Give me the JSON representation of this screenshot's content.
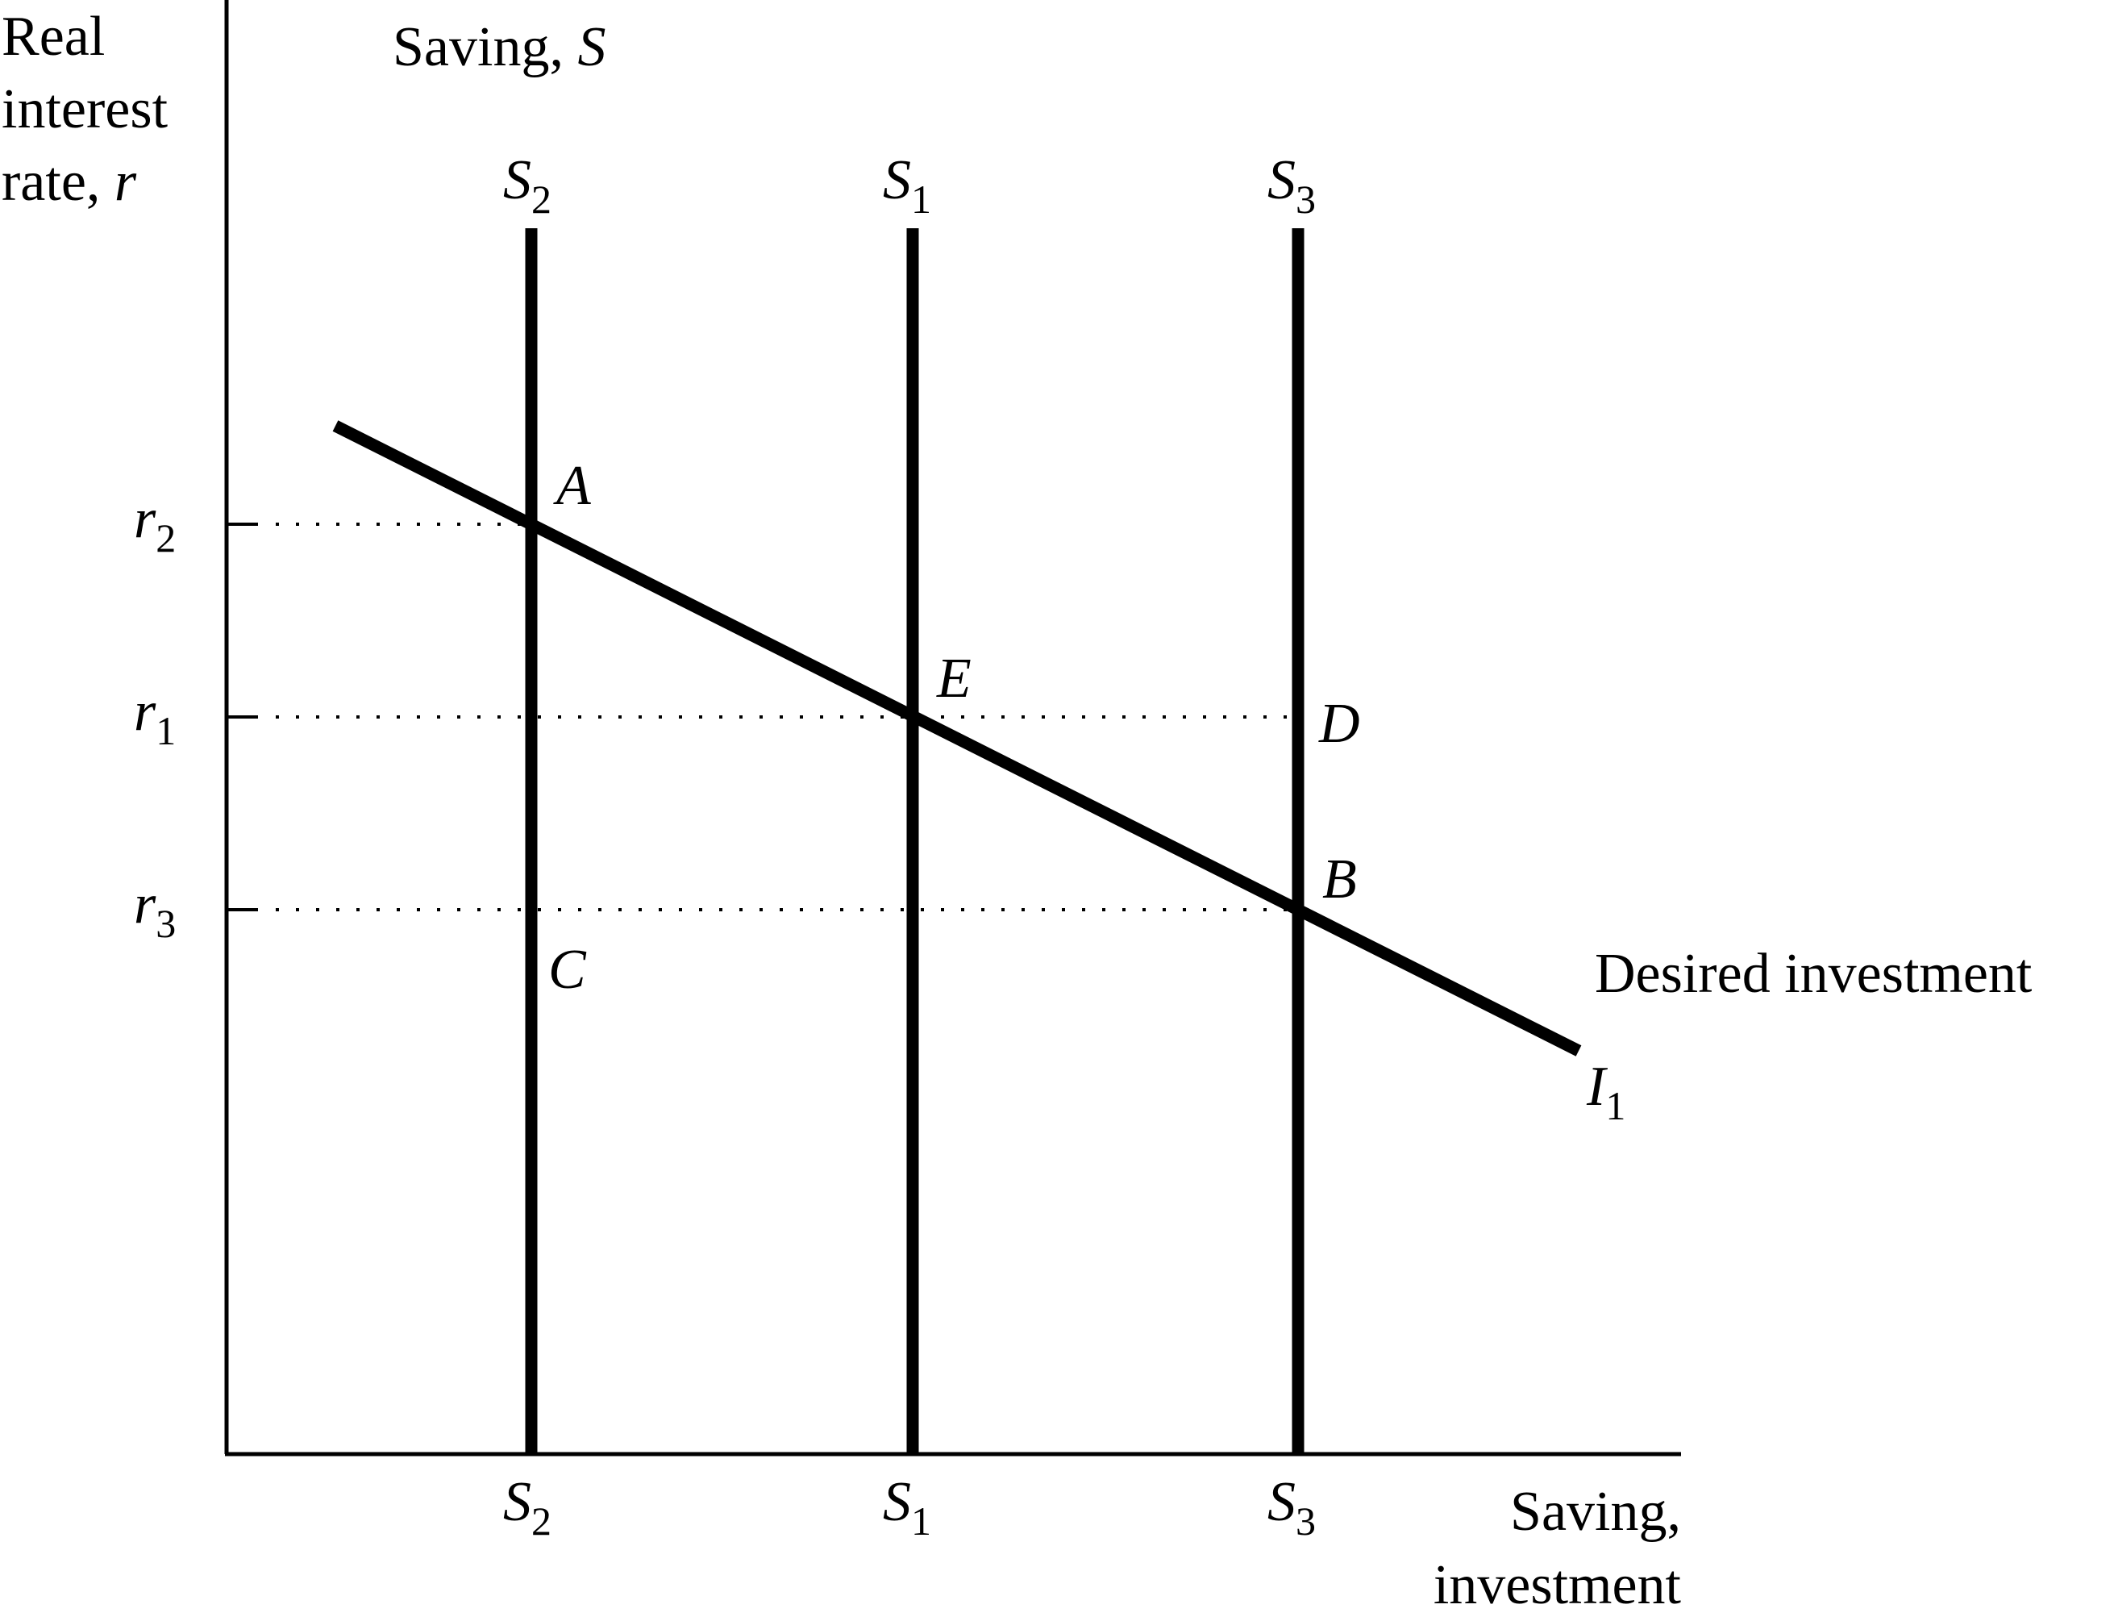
{
  "axis": {
    "y_title": [
      "Real",
      "interest",
      "rate, "
    ],
    "y_var": "r",
    "x_title": [
      "Saving,",
      "investment"
    ]
  },
  "saving_title": {
    "text": "Saving, ",
    "var": "S"
  },
  "curves": {
    "saving": [
      {
        "letter": "S",
        "sub": "2"
      },
      {
        "letter": "S",
        "sub": "1"
      },
      {
        "letter": "S",
        "sub": "3"
      }
    ],
    "investment": {
      "title": "Desired investment",
      "letter": "I",
      "sub": "1"
    }
  },
  "rates": [
    {
      "letter": "r",
      "sub": "2"
    },
    {
      "letter": "r",
      "sub": "1"
    },
    {
      "letter": "r",
      "sub": "3"
    }
  ],
  "points": [
    "A",
    "E",
    "D",
    "B",
    "C"
  ],
  "colors": {
    "ink": "#000000",
    "background": "#ffffff"
  }
}
